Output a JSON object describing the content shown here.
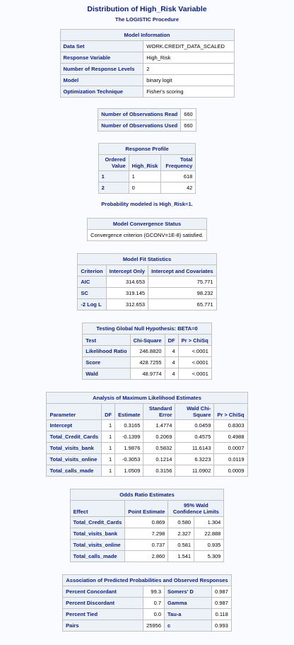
{
  "title": "Distribution of High_Risk Variable",
  "procedure": "The LOGISTIC Procedure",
  "model_info": {
    "caption": "Model Information",
    "rows": [
      [
        "Data Set",
        "WORK.CREDIT_DATA_SCALED"
      ],
      [
        "Response Variable",
        "High_Risk"
      ],
      [
        "Number of Response Levels",
        "2"
      ],
      [
        "Model",
        "binary logit"
      ],
      [
        "Optimization Technique",
        "Fisher's scoring"
      ]
    ]
  },
  "observations": {
    "rows": [
      [
        "Number of Observations Read",
        "660"
      ],
      [
        "Number of Observations Used",
        "660"
      ]
    ]
  },
  "response_profile": {
    "caption": "Response Profile",
    "headers": [
      "Ordered Value",
      "High_Risk",
      "Total Frequency"
    ],
    "rows": [
      [
        "1",
        "1",
        "618"
      ],
      [
        "2",
        "0",
        "42"
      ]
    ]
  },
  "probability_note": "Probability modeled is High_Risk=1.",
  "convergence": {
    "caption": "Model Convergence Status",
    "text": "Convergence criterion (GCONV=1E-8) satisfied."
  },
  "fit_stats": {
    "caption": "Model Fit Statistics",
    "headers": [
      "Criterion",
      "Intercept Only",
      "Intercept and Covariates"
    ],
    "rows": [
      [
        "AIC",
        "314.653",
        "75.771"
      ],
      [
        "SC",
        "319.145",
        "98.232"
      ],
      [
        "-2 Log L",
        "312.653",
        "65.771"
      ]
    ]
  },
  "global_null": {
    "caption": "Testing Global Null Hypothesis: BETA=0",
    "headers": [
      "Test",
      "Chi-Square",
      "DF",
      "Pr > ChiSq"
    ],
    "rows": [
      [
        "Likelihood Ratio",
        "246.8820",
        "4",
        "<.0001"
      ],
      [
        "Score",
        "428.7255",
        "4",
        "<.0001"
      ],
      [
        "Wald",
        "48.9774",
        "4",
        "<.0001"
      ]
    ]
  },
  "mle": {
    "caption": "Analysis of Maximum Likelihood Estimates",
    "headers": [
      "Parameter",
      "DF",
      "Estimate",
      "Standard Error",
      "Wald Chi-Square",
      "Pr > ChiSq"
    ],
    "rows": [
      [
        "Intercept",
        "1",
        "0.3165",
        "1.4774",
        "0.0459",
        "0.8303"
      ],
      [
        "Total_Credit_Cards",
        "1",
        "-0.1399",
        "0.2069",
        "0.4575",
        "0.4988"
      ],
      [
        "Total_visits_bank",
        "1",
        "1.9876",
        "0.5832",
        "11.6143",
        "0.0007"
      ],
      [
        "Total_visits_online",
        "1",
        "-0.3053",
        "0.1214",
        "6.3223",
        "0.0119"
      ],
      [
        "Total_calls_made",
        "1",
        "1.0509",
        "0.3156",
        "11.0902",
        "0.0009"
      ]
    ]
  },
  "odds_ratio": {
    "caption": "Odds Ratio Estimates",
    "headers": [
      "Effect",
      "Point Estimate",
      "95% Wald Confidence Limits"
    ],
    "rows": [
      [
        "Total_Credit_Cards",
        "0.869",
        "0.580",
        "1.304"
      ],
      [
        "Total_visits_bank",
        "7.298",
        "2.327",
        "22.888"
      ],
      [
        "Total_visits_online",
        "0.737",
        "0.581",
        "0.935"
      ],
      [
        "Total_calls_made",
        "2.860",
        "1.541",
        "5.309"
      ]
    ]
  },
  "association": {
    "caption": "Association of Predicted Probabilities and Observed Responses",
    "rows": [
      [
        "Percent Concordant",
        "99.3",
        "Somers' D",
        "0.987"
      ],
      [
        "Percent Discordant",
        "0.7",
        "Gamma",
        "0.987"
      ],
      [
        "Percent Tied",
        "0.0",
        "Tau-a",
        "0.118"
      ],
      [
        "Pairs",
        "25956",
        "c",
        "0.993"
      ]
    ]
  }
}
